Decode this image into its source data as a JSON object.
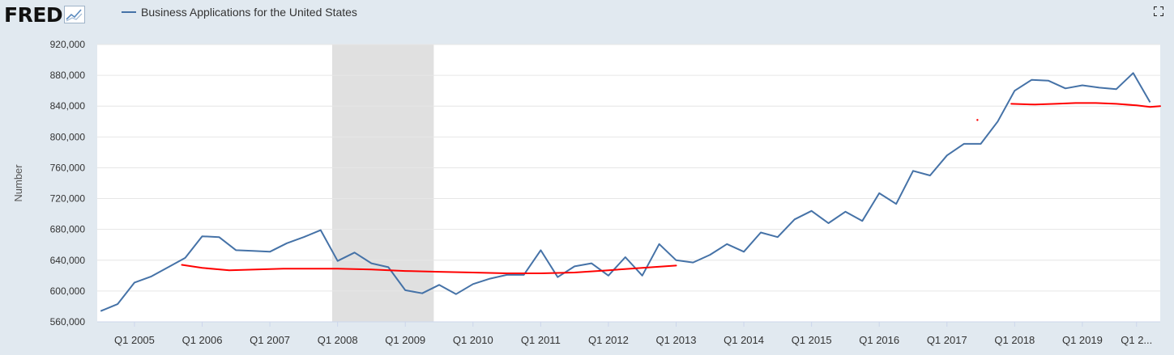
{
  "header": {
    "logo_text": "FRED",
    "legend_label": "Business Applications for the United States",
    "fullscreen_icon": "fullscreen-icon"
  },
  "colors": {
    "series": "#4572a7",
    "annotation": "#ff0000",
    "recession": "#e0e0e0",
    "background": "#e1e9f0",
    "plot": "#ffffff",
    "grid": "#e6e6e6"
  },
  "chart_data": {
    "type": "line",
    "ylabel": "Number",
    "ylim": [
      560000,
      920000
    ],
    "yticks": [
      560000,
      600000,
      640000,
      680000,
      720000,
      760000,
      800000,
      840000,
      880000,
      920000
    ],
    "ytick_labels": [
      "560,000",
      "600,000",
      "640,000",
      "680,000",
      "720,000",
      "760,000",
      "800,000",
      "840,000",
      "880,000",
      "920,000"
    ],
    "xlim": [
      2004.45,
      2020.15
    ],
    "xtick_labels": [
      "Q1 2005",
      "Q1 2006",
      "Q1 2007",
      "Q1 2008",
      "Q1 2009",
      "Q1 2010",
      "Q1 2011",
      "Q1 2012",
      "Q1 2013",
      "Q1 2014",
      "Q1 2015",
      "Q1 2016",
      "Q1 2017",
      "Q1 2018",
      "Q1 2019",
      "Q1 2..."
    ],
    "xtick_values": [
      2005,
      2006,
      2007,
      2008,
      2009,
      2010,
      2011,
      2012,
      2013,
      2014,
      2015,
      2016,
      2017,
      2018,
      2019,
      2019.8
    ],
    "recessions": [
      [
        2007.92,
        2009.42
      ]
    ],
    "series": [
      {
        "name": "Business Applications for the United States",
        "x": [
          2004.5,
          2004.75,
          2005.0,
          2005.25,
          2005.5,
          2005.75,
          2006.0,
          2006.25,
          2006.5,
          2006.75,
          2007.0,
          2007.25,
          2007.5,
          2007.75,
          2008.0,
          2008.25,
          2008.5,
          2008.75,
          2009.0,
          2009.25,
          2009.5,
          2009.75,
          2010.0,
          2010.25,
          2010.5,
          2010.75,
          2011.0,
          2011.25,
          2011.5,
          2011.75,
          2012.0,
          2012.25,
          2012.5,
          2012.75,
          2013.0,
          2013.25,
          2013.5,
          2013.75,
          2014.0,
          2014.25,
          2014.5,
          2014.75,
          2015.0,
          2015.25,
          2015.5,
          2015.75,
          2016.0,
          2016.25,
          2016.5,
          2016.75,
          2017.0,
          2017.25,
          2017.5,
          2017.75,
          2018.0,
          2018.25,
          2018.5,
          2018.75,
          2019.0,
          2019.25,
          2019.5,
          2019.75,
          2020.0
        ],
        "y": [
          574000,
          583000,
          611000,
          619000,
          631000,
          643000,
          671000,
          670000,
          653000,
          652000,
          651000,
          662000,
          670000,
          679000,
          639000,
          650000,
          636000,
          631000,
          601000,
          597000,
          608000,
          596000,
          609000,
          616000,
          621000,
          621000,
          653000,
          618000,
          632000,
          636000,
          620000,
          644000,
          620000,
          661000,
          640000,
          637000,
          647000,
          661000,
          651000,
          676000,
          670000,
          693000,
          704000,
          688000,
          703000,
          691000,
          727000,
          713000,
          756000,
          750000,
          776000,
          791000,
          791000,
          820000,
          860000,
          874000,
          873000,
          863000,
          867000,
          864000,
          862000,
          883000,
          845000
        ]
      }
    ],
    "annotations": [
      {
        "type": "hand-drawn-line",
        "x": [
          2005.7,
          2006.0,
          2006.4,
          2006.8,
          2007.2,
          2007.6,
          2008.0,
          2008.5,
          2009.0,
          2009.5,
          2010.0,
          2010.5,
          2011.0,
          2011.5,
          2012.0,
          2012.5,
          2013.0
        ],
        "y": [
          634000,
          630000,
          627000,
          628000,
          629000,
          629000,
          629000,
          628000,
          626000,
          625000,
          624000,
          623000,
          623000,
          624000,
          627000,
          630000,
          633000
        ]
      },
      {
        "type": "hand-drawn-line",
        "x": [
          2017.95,
          2018.3,
          2018.6,
          2018.9,
          2019.2,
          2019.5,
          2019.8,
          2020.0,
          2020.15
        ],
        "y": [
          843000,
          842000,
          843000,
          844000,
          844000,
          843000,
          841000,
          839000,
          840000
        ]
      },
      {
        "type": "dot",
        "x": 2017.45,
        "y": 822000
      }
    ]
  }
}
